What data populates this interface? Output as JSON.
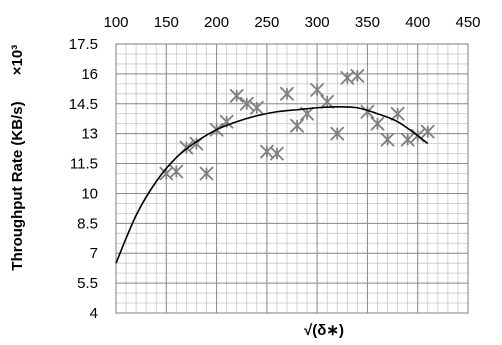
{
  "chart_data": {
    "type": "scatter",
    "title": "",
    "xlabel": "√(δ∗)",
    "ylabel": "Throughput Rate (KB/s)",
    "y_multiplier": "×10³",
    "x_axis_position": "top",
    "xlim": [
      100,
      450
    ],
    "ylim": [
      4,
      17.5
    ],
    "x_ticks": [
      "100",
      "150",
      "200",
      "250",
      "300",
      "350",
      "400",
      "450"
    ],
    "y_ticks": [
      "4",
      "5.5",
      "7",
      "8.5",
      "10",
      "11.5",
      "13",
      "14.5",
      "16",
      "17.5"
    ],
    "x_minor_step": 10,
    "y_minor_step": 0.5,
    "grid": true,
    "marker": "asterisk",
    "marker_color": "#7f7f7f",
    "curve_color": "#000000",
    "series": [
      {
        "points": [
          [
            150,
            11.0
          ],
          [
            160,
            11.1
          ],
          [
            170,
            12.3
          ],
          [
            180,
            12.5
          ],
          [
            190,
            11.0
          ],
          [
            200,
            13.2
          ],
          [
            210,
            13.6
          ],
          [
            220,
            14.9
          ],
          [
            230,
            14.5
          ],
          [
            240,
            14.3
          ],
          [
            250,
            12.1
          ],
          [
            260,
            12.0
          ],
          [
            270,
            15.0
          ],
          [
            280,
            13.4
          ],
          [
            290,
            14.0
          ],
          [
            300,
            15.2
          ],
          [
            310,
            14.6
          ],
          [
            320,
            13.0
          ],
          [
            330,
            15.8
          ],
          [
            340,
            15.9
          ],
          [
            350,
            14.1
          ],
          [
            360,
            13.5
          ],
          [
            370,
            12.7
          ],
          [
            380,
            14.0
          ],
          [
            390,
            12.7
          ],
          [
            400,
            12.9
          ],
          [
            410,
            13.1
          ]
        ]
      }
    ],
    "trend_line": {
      "x": [
        100,
        120,
        140,
        160,
        180,
        200,
        220,
        240,
        260,
        280,
        300,
        320,
        340,
        360,
        380,
        400,
        410
      ],
      "y": [
        6.5,
        8.9,
        10.6,
        11.8,
        12.6,
        13.2,
        13.6,
        13.9,
        14.1,
        14.2,
        14.3,
        14.35,
        14.3,
        14.0,
        13.6,
        12.9,
        12.5
      ]
    }
  }
}
